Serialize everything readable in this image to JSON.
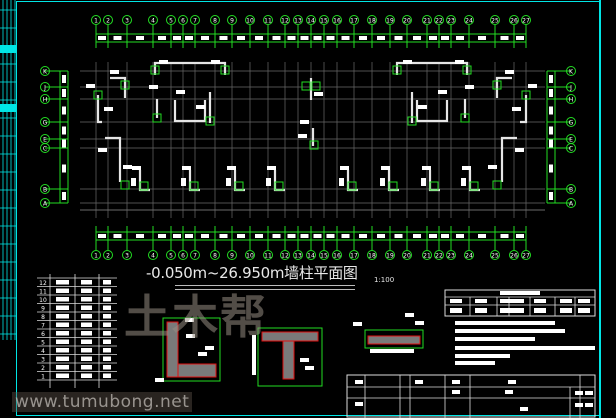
{
  "drawing": {
    "title": "-0.050m~26.950m墙柱平面图",
    "scale": "1:100",
    "axis_numbers": [
      "1",
      "2",
      "3",
      "4",
      "5",
      "6",
      "7",
      "8",
      "9",
      "10",
      "11",
      "12",
      "13",
      "14",
      "15",
      "16",
      "17",
      "18",
      "19",
      "20",
      "21",
      "22",
      "23",
      "24",
      "25",
      "26",
      "27"
    ],
    "axis_letters": [
      "K",
      "J",
      "H",
      "G",
      "E",
      "C",
      "B",
      "A"
    ],
    "floor_numbers": [
      "12",
      "11",
      "10",
      "9",
      "8",
      "7",
      "6",
      "5",
      "4",
      "3",
      "2",
      "1"
    ],
    "colors": {
      "background": "#000000",
      "frame": "#00e5e5",
      "axis": "#22dd22",
      "walls": "#e6e6e6",
      "grid": "#6a6a6a",
      "hatch": "#e01010"
    }
  },
  "watermark": {
    "logo": "土木帮",
    "url": "www.tumubong.net"
  }
}
